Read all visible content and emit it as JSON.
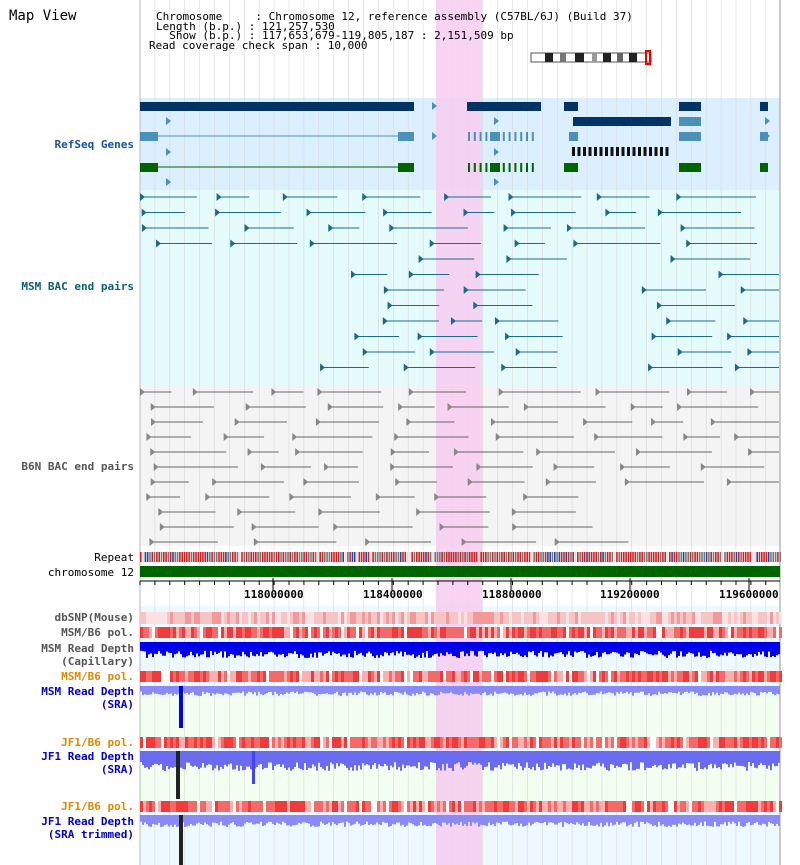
{
  "map_view": {
    "title": "Map View"
  },
  "header": {
    "chromosome_line": "Chromosome     : Chromosome 12, reference assembly (C57BL/6J) (Build 37)",
    "length_line": "Length (b.p.) : 121,257,530",
    "show_line": "  Show (b.p.) : 117,653,679-119,805,187 : 2,151,509 bp",
    "coverage_line": "Read coverage check span : 10,000"
  },
  "tracks": {
    "refseq": "RefSeq Genes",
    "msm_bac": "MSM BAC end pairs",
    "b6n_bac": "B6N BAC end pairs",
    "repeat": "Repeat",
    "chromosome": "chromosome 12",
    "dbsnp": "dbSNP(Mouse)",
    "msm_b6_pol_1": "MSM/B6 pol.",
    "msm_depth_cap_1": "MSM Read Depth",
    "msm_depth_cap_2": "(Capillary)",
    "msm_b6_pol_2": "MSM/B6 pol.",
    "msm_depth_sra_1": "MSM Read Depth",
    "msm_depth_sra_2": "(SRA)",
    "jf1_b6_pol_1": "JF1/B6 pol.",
    "jf1_depth_sra_1": "JF1 Read Depth",
    "jf1_depth_sra_2": "(SRA)",
    "jf1_b6_pol_2": "JF1/B6 pol.",
    "jf1_depth_trim_1": "JF1 Read Depth",
    "jf1_depth_trim_2": "(SRA trimmed)"
  },
  "axis": {
    "ticks": [
      "118000000",
      "118400000",
      "118800000",
      "119200000",
      "119600000"
    ]
  },
  "colors": {
    "refseq_bg": "#dcefff",
    "msm_bg": "#e5fafa",
    "b6n_bg": "#f4f4f4",
    "highlight": "#f7cdf0",
    "chromosome": "#006400",
    "depth_blue": "#0000ee",
    "depth_light": "#7777ff"
  }
}
